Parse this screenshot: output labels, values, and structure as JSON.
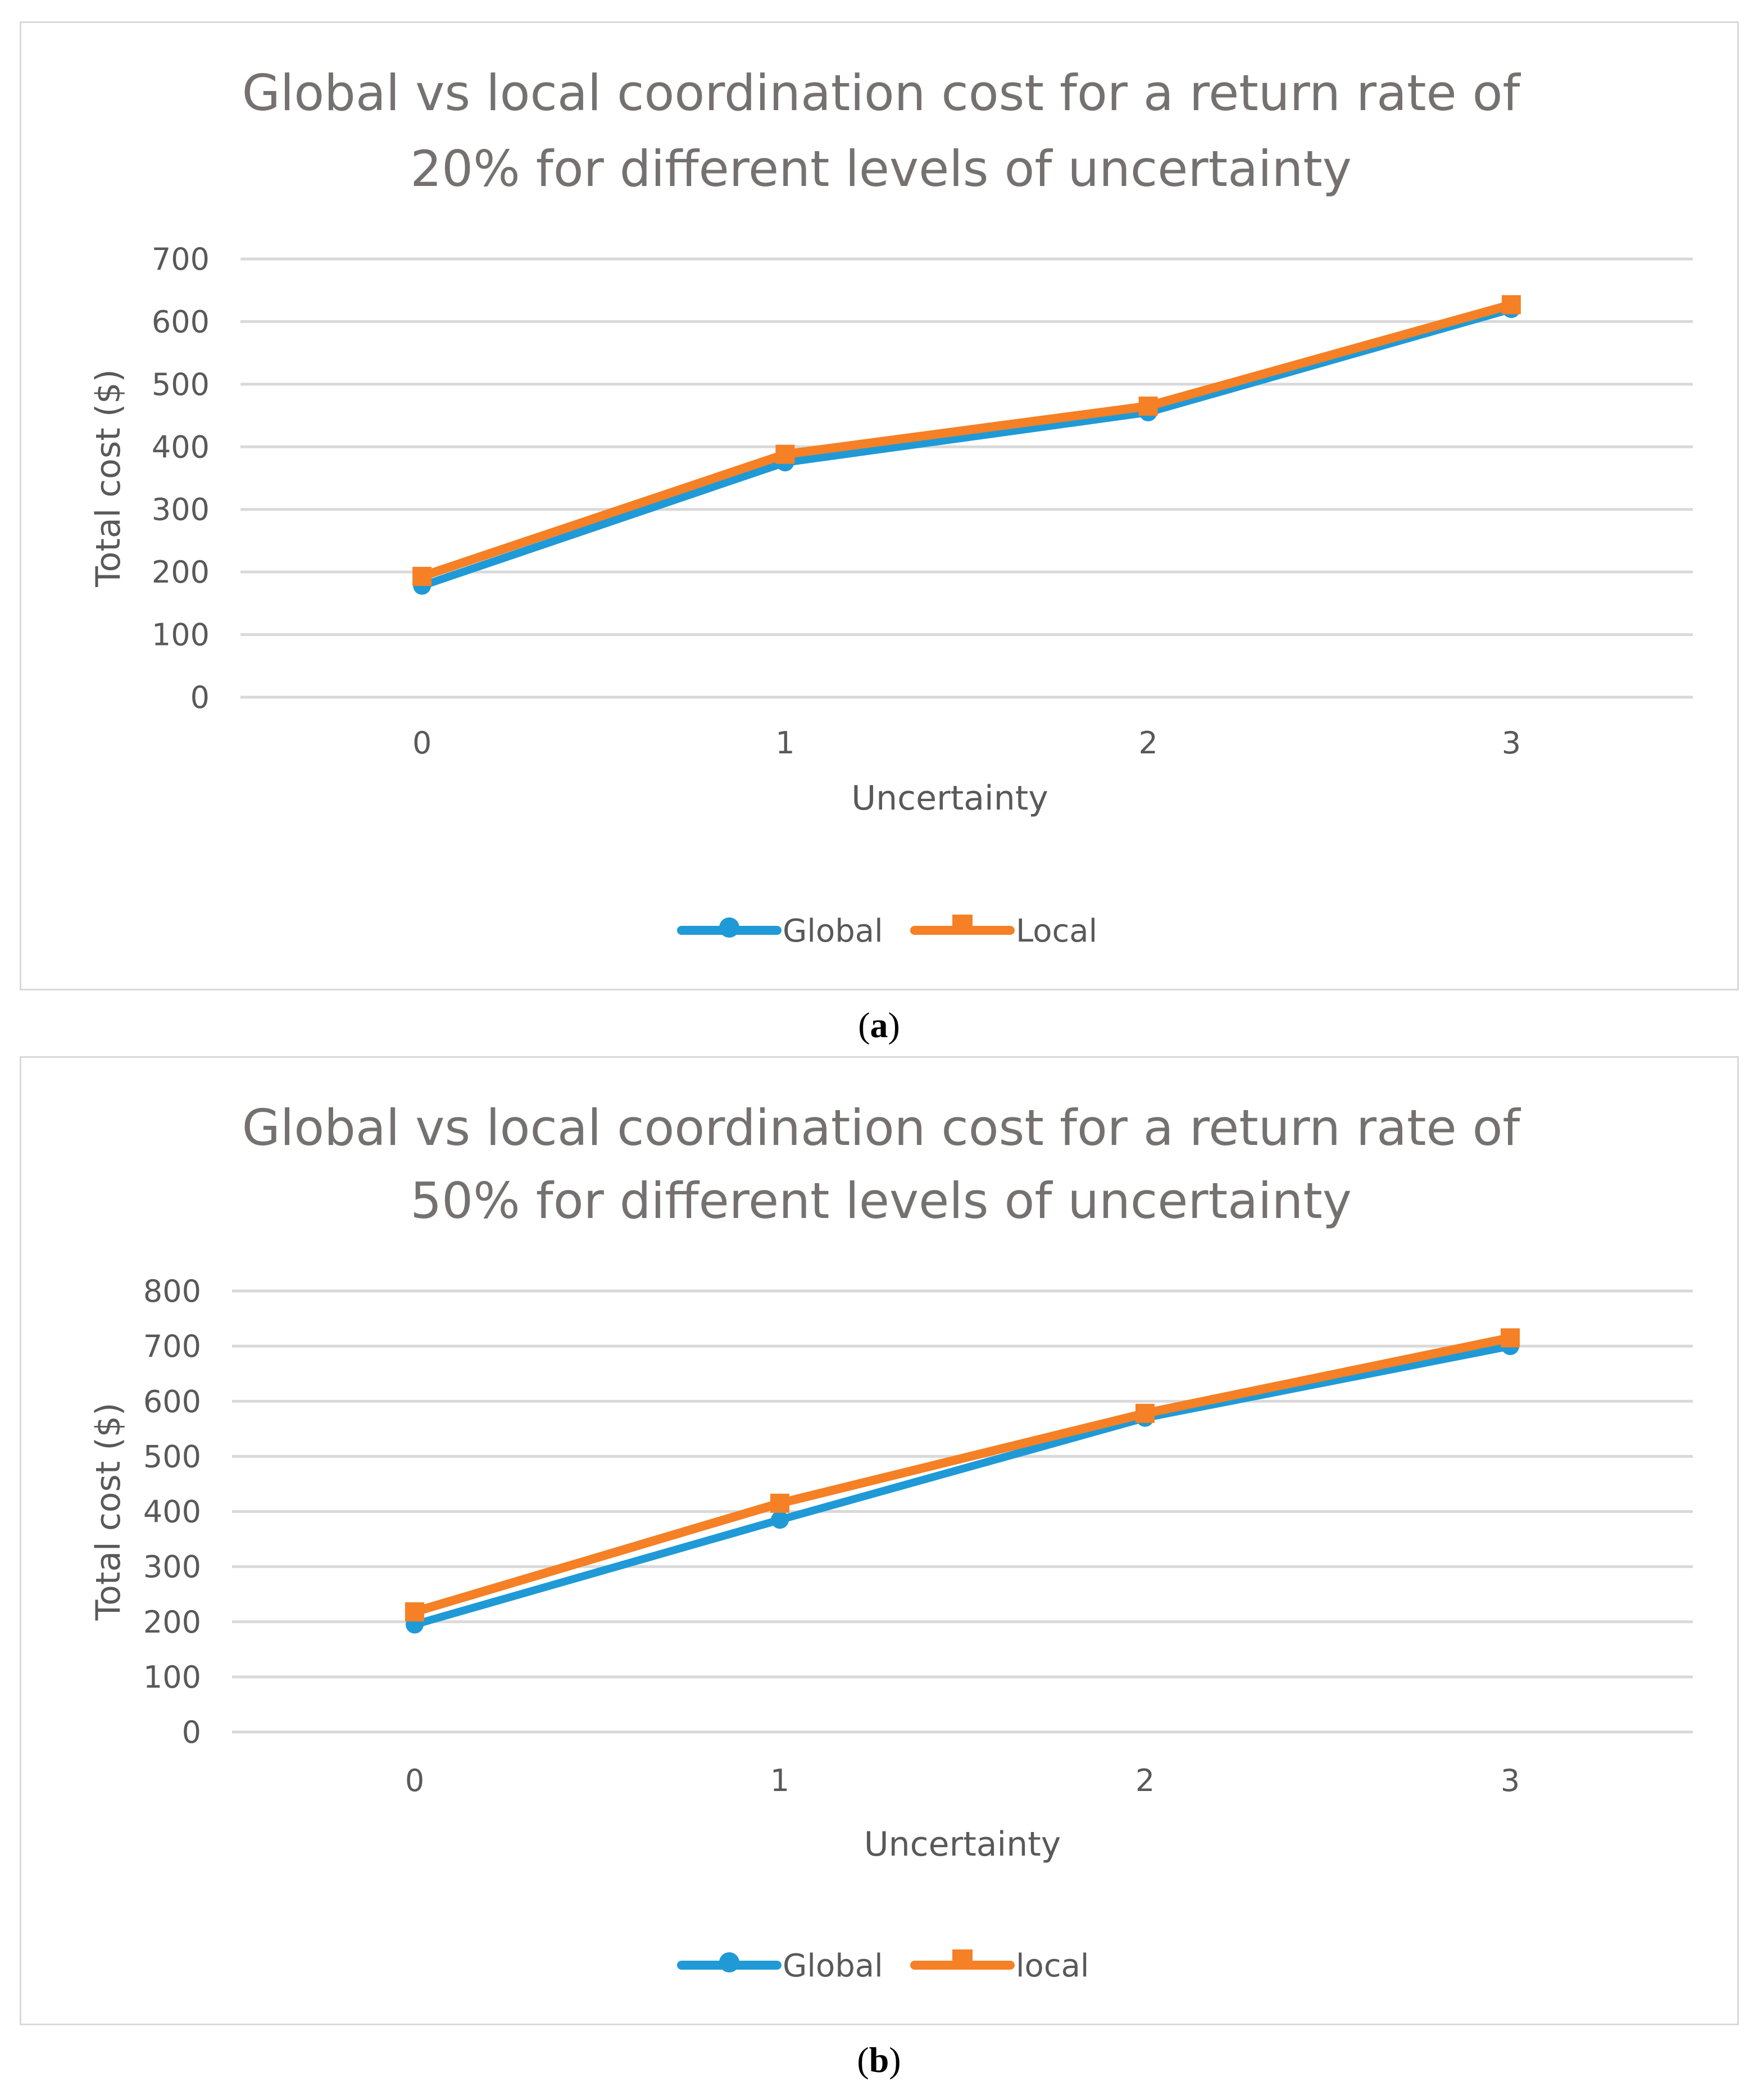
{
  "chart_data": [
    {
      "type": "line",
      "title_lines": [
        "Global vs local coordination cost for a return rate of",
        "20% for different levels of uncertainty"
      ],
      "xlabel": "Uncertainty",
      "ylabel": "Total cost ($)",
      "categories": [
        "0",
        "1",
        "2",
        "3"
      ],
      "ylim": [
        0,
        700
      ],
      "yticks": [
        "0",
        "100",
        "200",
        "300",
        "400",
        "500",
        "600",
        "700"
      ],
      "series": [
        {
          "name": "Global",
          "color": "#1f9ad6",
          "marker": "circle",
          "values": [
            178,
            375,
            455,
            620
          ]
        },
        {
          "name": "Local",
          "color": "#f58025",
          "marker": "square",
          "values": [
            193,
            388,
            465,
            627
          ]
        }
      ],
      "legend": "bottom",
      "caption": "a"
    },
    {
      "type": "line",
      "title_lines": [
        "Global vs local coordination cost for a return rate of",
        "50% for different levels of uncertainty"
      ],
      "xlabel": "Uncertainty",
      "ylabel": "Total cost ($)",
      "categories": [
        "0",
        "1",
        "2",
        "3"
      ],
      "ylim": [
        0,
        800
      ],
      "yticks": [
        "0",
        "100",
        "200",
        "300",
        "400",
        "500",
        "600",
        "700",
        "800"
      ],
      "series": [
        {
          "name": "Global",
          "color": "#1f9ad6",
          "marker": "circle",
          "values": [
            195,
            385,
            570,
            700
          ]
        },
        {
          "name": "local",
          "color": "#f58025",
          "marker": "square",
          "values": [
            218,
            415,
            578,
            715
          ]
        }
      ],
      "legend": "bottom",
      "caption": "b"
    }
  ]
}
